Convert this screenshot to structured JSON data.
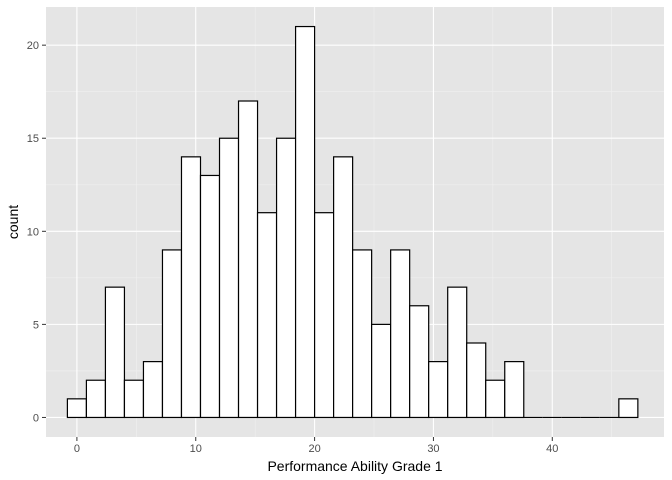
{
  "chart_data": {
    "type": "bar",
    "subtype": "histogram",
    "title": "",
    "xlabel": "Performance Ability Grade 1",
    "ylabel": "count",
    "xlim": [
      -2.6,
      49.4
    ],
    "ylim": [
      -1.05,
      22.05
    ],
    "x_ticks": [
      0,
      10,
      20,
      30,
      40
    ],
    "y_ticks": [
      0,
      5,
      10,
      15,
      20
    ],
    "x_tick_labels": [
      "0",
      "10",
      "20",
      "30",
      "40"
    ],
    "y_tick_labels": [
      "0",
      "5",
      "10",
      "15",
      "20"
    ],
    "bin_width": 1.6,
    "bin_centers": [
      0,
      1.6,
      3.2,
      4.8,
      6.4,
      8.0,
      9.6,
      11.2,
      12.8,
      14.4,
      16.0,
      17.6,
      19.2,
      20.8,
      22.4,
      24.0,
      25.6,
      27.2,
      28.8,
      30.4,
      32.0,
      33.6,
      35.2,
      36.8,
      38.4,
      40.0,
      41.6,
      43.2,
      44.8,
      46.4
    ],
    "counts": [
      1,
      2,
      7,
      2,
      3,
      9,
      14,
      13,
      15,
      17,
      11,
      15,
      21,
      11,
      14,
      9,
      5,
      9,
      6,
      3,
      7,
      4,
      2,
      3,
      0,
      0,
      0,
      0,
      0,
      1
    ],
    "grid": true,
    "colors": {
      "panel": "#e5e5e5",
      "grid_major": "#ffffff",
      "grid_minor": "#f0f0f0",
      "bar_fill": "#ffffff",
      "bar_stroke": "#000000",
      "tick": "#333333"
    }
  }
}
